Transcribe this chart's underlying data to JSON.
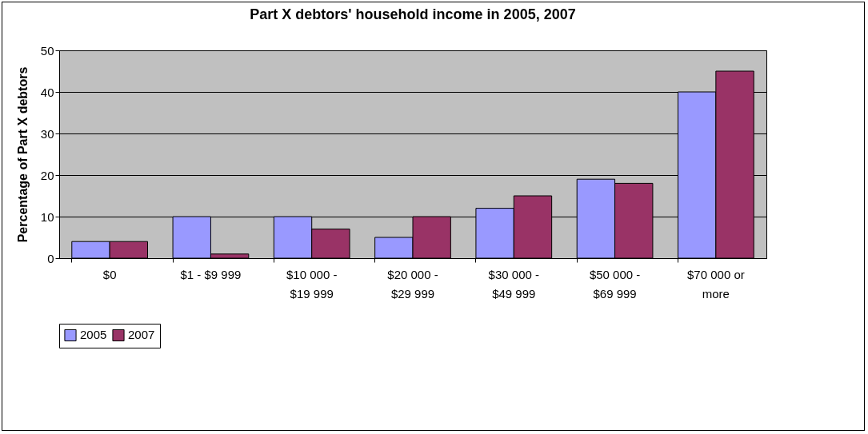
{
  "chart_data": {
    "type": "bar",
    "title": "Part X debtors' household income in 2005, 2007",
    "ylabel": "Percentage of Part X debtors",
    "categories": [
      "$0",
      "$1 - $9 999",
      "$10 000 - $19 999",
      "$20 000 - $29 999",
      "$30 000 - $49 999",
      "$50 000 - $69 999",
      "$70 000 or more"
    ],
    "series": [
      {
        "name": "2005",
        "color": "#9999ff",
        "values": [
          4,
          10,
          10,
          5,
          12,
          19,
          40
        ]
      },
      {
        "name": "2007",
        "color": "#993366",
        "values": [
          4,
          1,
          7,
          10,
          15,
          18,
          45
        ]
      }
    ],
    "ylim": [
      0,
      50
    ],
    "yticks": [
      0,
      10,
      20,
      30,
      40,
      50
    ],
    "grid": "y",
    "legend": "bottom"
  }
}
